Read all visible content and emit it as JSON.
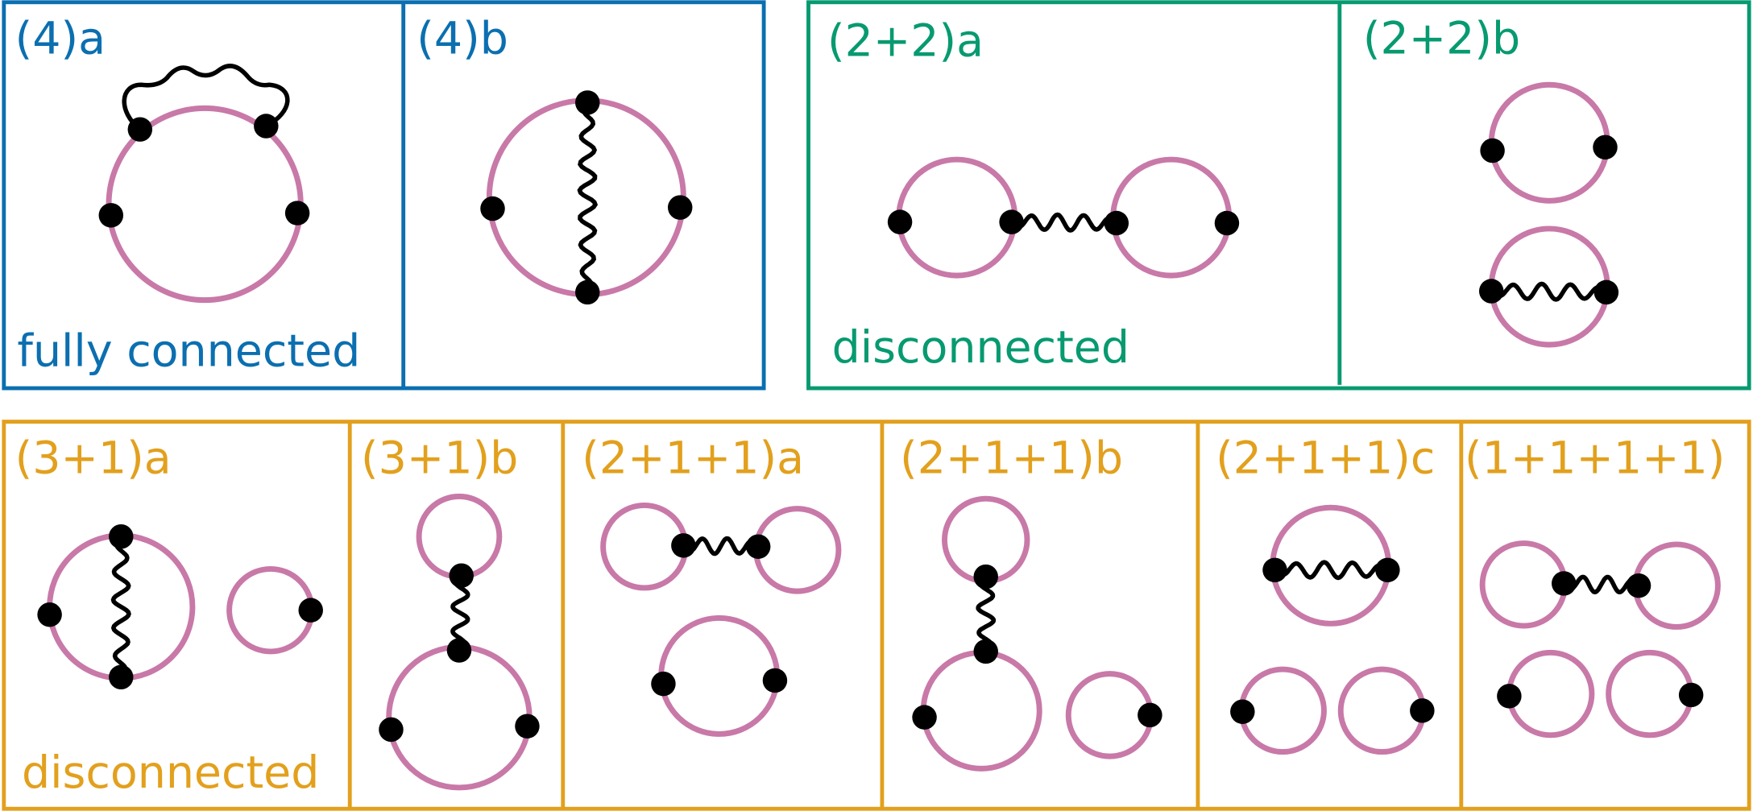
{
  "groups": [
    {
      "caption": "fully connected",
      "panels": [
        "(4)a",
        "(4)b"
      ]
    },
    {
      "caption": "disconnected",
      "panels": [
        "(2+2)a",
        "(2+2)b"
      ]
    },
    {
      "caption": "disconnected",
      "panels": [
        "(3+1)a",
        "(3+1)b",
        "(2+1+1)a",
        "(2+1+1)b",
        "(2+1+1)c",
        "(1+1+1+1)"
      ]
    }
  ]
}
